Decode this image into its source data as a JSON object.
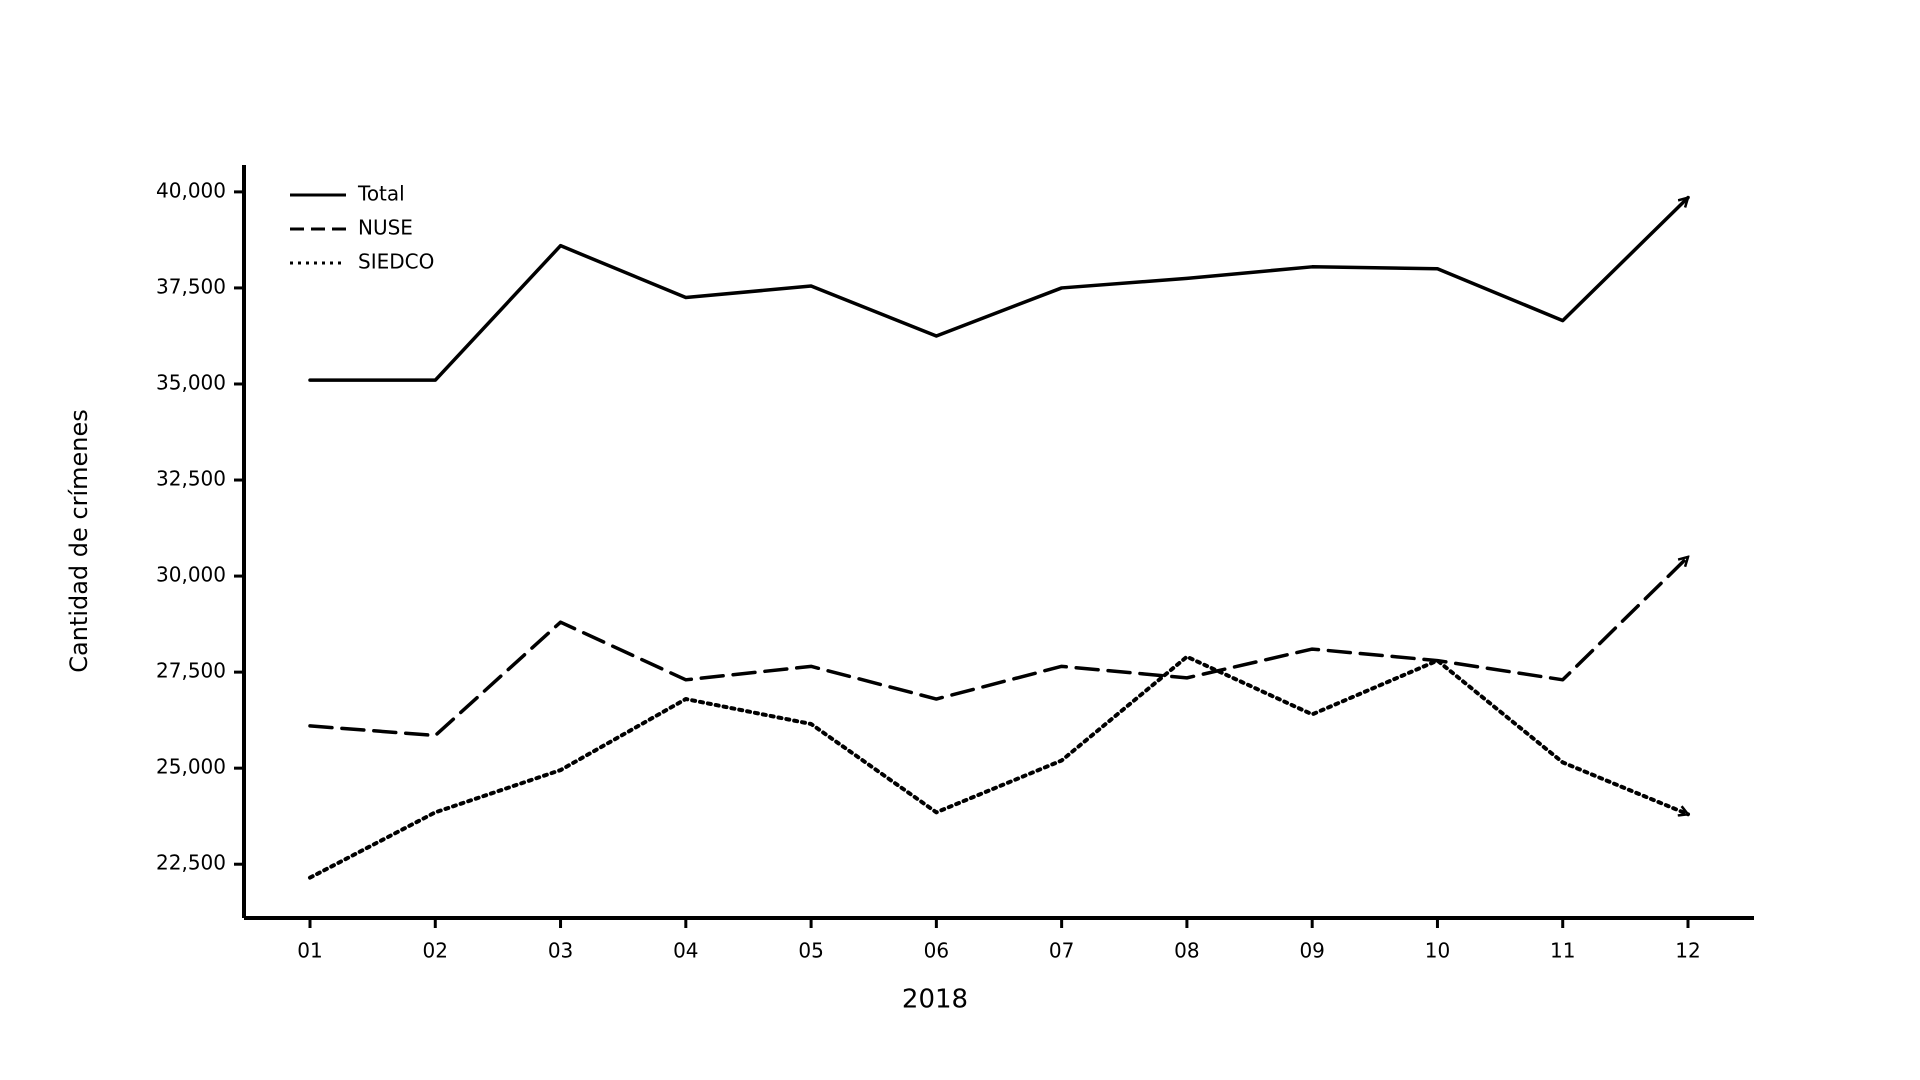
{
  "chart_data": {
    "type": "line",
    "x_label": "2018",
    "y_label": "Cantidad de crímenes",
    "categories": [
      "01",
      "02",
      "03",
      "04",
      "05",
      "06",
      "07",
      "08",
      "09",
      "10",
      "11",
      "12"
    ],
    "series": [
      {
        "name": "Total",
        "color": "#000000",
        "line_style": "solid",
        "values": [
          35100,
          35100,
          38600,
          37250,
          37550,
          36250,
          37500,
          37750,
          38050,
          38000,
          36650,
          39850
        ]
      },
      {
        "name": "NUSE",
        "color": "#000000",
        "line_style": "dashed",
        "values": [
          26100,
          25850,
          28800,
          27300,
          27650,
          26800,
          27650,
          27350,
          28100,
          27800,
          27300,
          30500
        ]
      },
      {
        "name": "SIEDCO",
        "color": "#000000",
        "line_style": "dotted",
        "values": [
          22150,
          23850,
          24950,
          26800,
          26150,
          23850,
          25200,
          27900,
          26400,
          27800,
          25150,
          23800
        ]
      }
    ],
    "ylim": [
      21100,
      40700
    ],
    "yticks": [
      {
        "value": 22500,
        "label": "22,500"
      },
      {
        "value": 25000,
        "label": "25,000"
      },
      {
        "value": 27500,
        "label": "27,500"
      },
      {
        "value": 30000,
        "label": "30,000"
      },
      {
        "value": 32500,
        "label": "32,500"
      },
      {
        "value": 35000,
        "label": "35,000"
      },
      {
        "value": 37500,
        "label": "37,500"
      },
      {
        "value": 40000,
        "label": "40,000"
      }
    ],
    "grid": false,
    "legend": "upper left",
    "line_end_arrows": true
  }
}
